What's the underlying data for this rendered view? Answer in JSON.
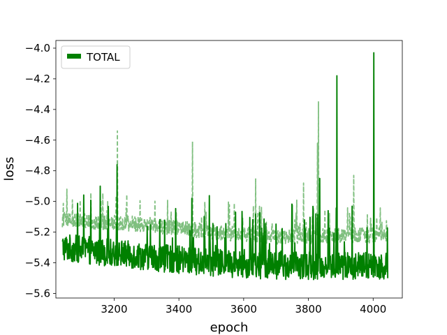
{
  "chart_data": {
    "type": "line",
    "xlabel": "epoch",
    "ylabel": "loss",
    "xlim": [
      3020,
      4090
    ],
    "ylim": [
      -5.63,
      -3.95
    ],
    "x_ticks": [
      3200,
      3400,
      3600,
      3800,
      4000
    ],
    "y_ticks": [
      -4.0,
      -4.2,
      -4.4,
      -4.6,
      -4.8,
      -5.0,
      -5.2,
      -5.4,
      -5.6
    ],
    "y_tick_labels": [
      "−4.0",
      "−4.2",
      "−4.4",
      "−4.6",
      "−4.8",
      "−5.0",
      "−5.2",
      "−5.4",
      "−5.6"
    ],
    "x_tick_labels": [
      "3200",
      "3400",
      "3600",
      "3800",
      "4000"
    ],
    "grid": false,
    "legend": {
      "position": "top-left",
      "entries": [
        "TOTAL"
      ]
    },
    "x_range": [
      3040,
      4045
    ],
    "series": [
      {
        "name": "TOTAL",
        "role": "train",
        "style": "solid",
        "color": "#008000",
        "baseline": [
          [
            3040,
            -5.3
          ],
          [
            3300,
            -5.36
          ],
          [
            3500,
            -5.4
          ],
          [
            3700,
            -5.42
          ],
          [
            3900,
            -5.42
          ],
          [
            4045,
            -5.42
          ]
        ],
        "noise": 0.09,
        "spikes": [
          [
            3209,
            -4.76
          ],
          [
            3440,
            -4.98
          ],
          [
            3835,
            -4.85
          ],
          [
            3888,
            -4.18
          ],
          [
            4002,
            -4.03
          ]
        ]
      },
      {
        "name": "",
        "role": "validation",
        "style": "dashed",
        "color": "#7fbf7f",
        "baseline": [
          [
            3040,
            -5.12
          ],
          [
            3300,
            -5.15
          ],
          [
            3500,
            -5.2
          ],
          [
            3700,
            -5.23
          ],
          [
            3900,
            -5.22
          ],
          [
            4045,
            -5.22
          ]
        ],
        "noise": 0.05,
        "spikes": [
          [
            3210,
            -4.54
          ],
          [
            3442,
            -4.61
          ],
          [
            3637,
            -4.85
          ],
          [
            3785,
            -4.88
          ],
          [
            3831,
            -4.35
          ],
          [
            3828,
            -4.62
          ],
          [
            3940,
            -4.83
          ]
        ]
      }
    ]
  }
}
